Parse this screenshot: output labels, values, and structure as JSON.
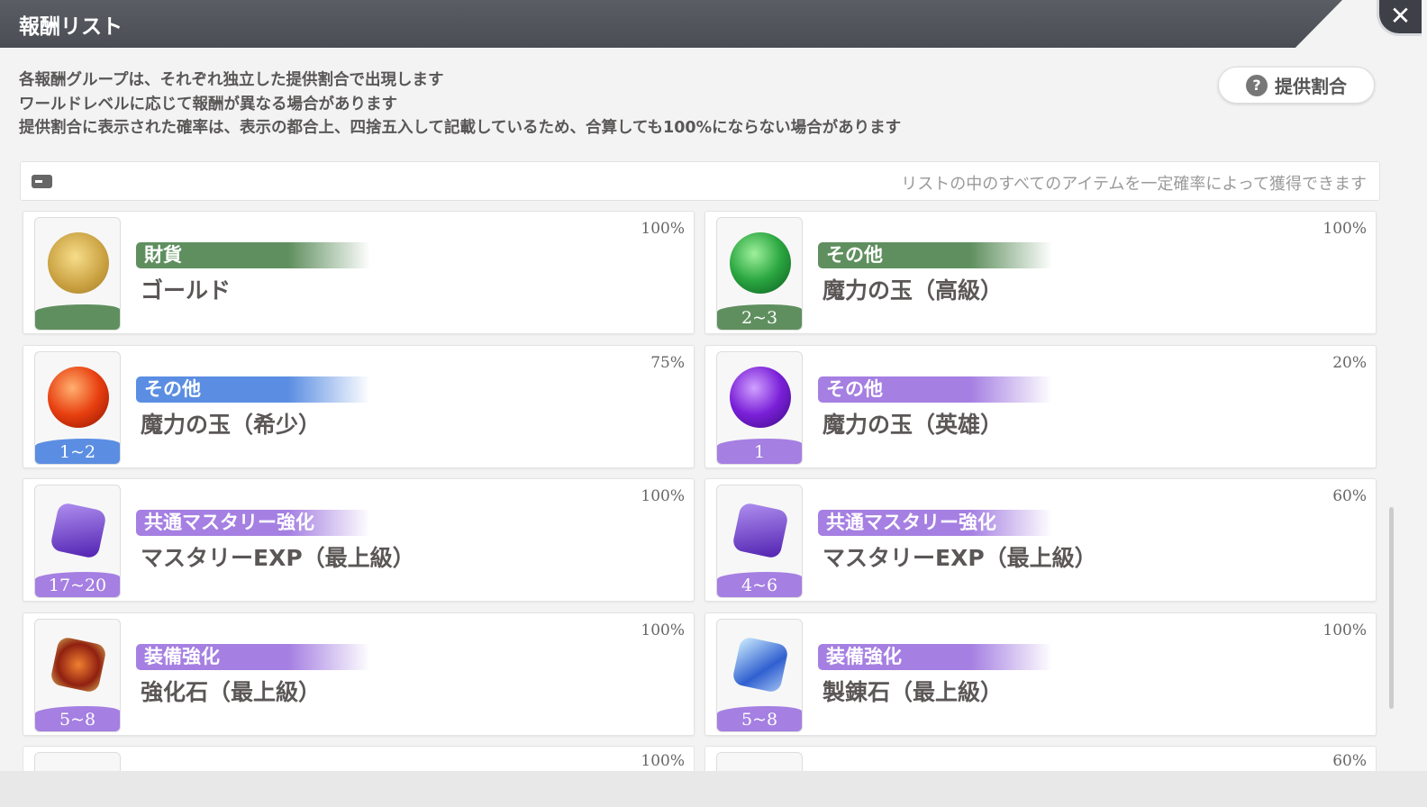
{
  "header": {
    "title": "報酬リスト",
    "close_icon": "close-icon"
  },
  "description": [
    "各報酬グループは、それぞれ独立した提供割合で出現します",
    "ワールドレベルに応じて報酬が異なる場合があります",
    "提供割合に表示された確率は、表示の都合上、四捨五入して記載しているため、合算しても100%にならない場合があります"
  ],
  "rate_button": {
    "label": "提供割合",
    "icon": "question-icon"
  },
  "info_bar": {
    "icon": "chest-icon",
    "text": "リストの中のすべてのアイテムを一定確率によって獲得できます"
  },
  "colors": {
    "green": "#5f8f5f",
    "blue": "#5b8ee2",
    "purple": "#a57fe2"
  },
  "items": [
    {
      "category": "財貨",
      "name": "ゴールド",
      "quantity": "",
      "percent": "100%",
      "color": "green",
      "icon": "gold-coin-icon"
    },
    {
      "category": "その他",
      "name": "魔力の玉（高級）",
      "quantity": "2~3",
      "percent": "100%",
      "color": "green",
      "icon": "green-orb-icon"
    },
    {
      "category": "その他",
      "name": "魔力の玉（希少）",
      "quantity": "1~2",
      "percent": "75%",
      "color": "blue",
      "icon": "red-orb-icon"
    },
    {
      "category": "その他",
      "name": "魔力の玉（英雄）",
      "quantity": "1",
      "percent": "20%",
      "color": "purple",
      "icon": "purple-orb-icon"
    },
    {
      "category": "共通マスタリー強化",
      "name": "マスタリーEXP（最上級）",
      "quantity": "17~20",
      "percent": "100%",
      "color": "purple",
      "icon": "crystal-icon"
    },
    {
      "category": "共通マスタリー強化",
      "name": "マスタリーEXP（最上級）",
      "quantity": "4~6",
      "percent": "60%",
      "color": "purple",
      "icon": "crystal-icon"
    },
    {
      "category": "装備強化",
      "name": "強化石（最上級）",
      "quantity": "5~8",
      "percent": "100%",
      "color": "purple",
      "icon": "enhance-stone-icon"
    },
    {
      "category": "装備強化",
      "name": "製錬石（最上級）",
      "quantity": "5~8",
      "percent": "100%",
      "color": "purple",
      "icon": "refine-stone-icon"
    },
    {
      "category": "",
      "name": "",
      "quantity": "",
      "percent": "100%",
      "color": "purple",
      "icon": "item-icon"
    },
    {
      "category": "",
      "name": "",
      "quantity": "",
      "percent": "60%",
      "color": "purple",
      "icon": "item-icon"
    }
  ]
}
